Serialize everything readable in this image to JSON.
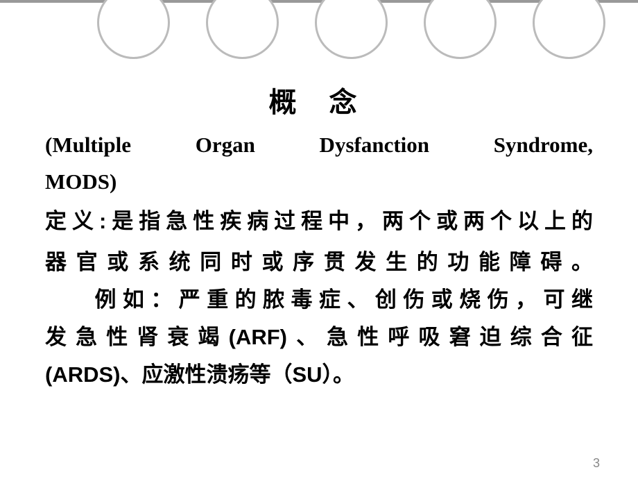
{
  "slide": {
    "title": "概  念",
    "subtitle_line1": "(Multiple Organ Dysfanction Syndrome,",
    "subtitle_line2": "MODS)",
    "definition_line1": "定义:是指急性疾病过程中，两个或两个以上的",
    "definition_line2": "器官或系统同时或序贯发生的功能障碍。",
    "example_line1": "例如：严重的脓毒症、创伤或烧伤，可继",
    "example_line2": "发急性肾衰竭(ARF)、急性呼吸窘迫综合征",
    "example_line3": "(ARDS)、应激性溃疡等（SU）。",
    "page_number": "3"
  },
  "style": {
    "background_color": "#ffffff",
    "border_color": "#999999",
    "circle_border_color": "#bbbbbb",
    "text_color": "#000000",
    "page_number_color": "#888888",
    "title_fontsize": 40,
    "body_fontsize": 31,
    "page_number_fontsize": 18,
    "circle_count": 5,
    "circle_diameter": 105,
    "circle_gap": 52
  }
}
